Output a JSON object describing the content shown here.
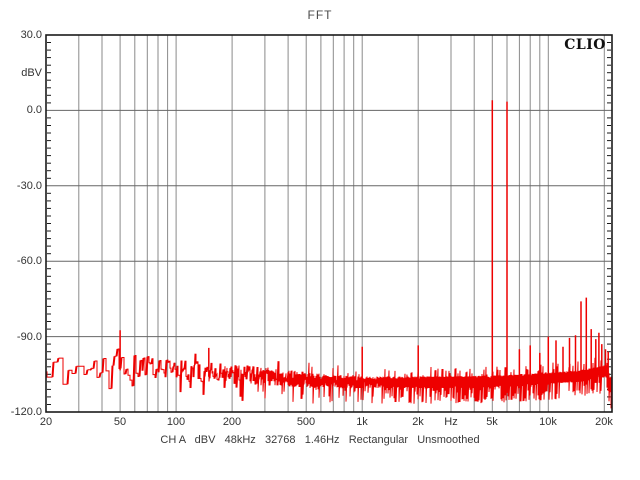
{
  "window": {
    "title": "FFT",
    "brand": "CLIO"
  },
  "status_line": "CH A   dBV   48kHz   32768   1.46Hz   Rectangular   Unsmoothed",
  "status_fields": {
    "channel": "CH A",
    "unit": "dBV",
    "sample_rate": "48kHz",
    "fft_size": "32768",
    "resolution": "1.46Hz",
    "window_fn": "Rectangular",
    "smoothing": "Unsmoothed"
  },
  "colors": {
    "trace": "#ee0000",
    "grid_v": "#8a8a8a",
    "grid_h": "#666666",
    "border": "#1a1a1a",
    "tick": "#1a1a1a"
  },
  "chart_data": {
    "type": "line",
    "title": "FFT",
    "ylabel": "dBV",
    "xscale": "log",
    "grid": true,
    "legend_position": "none",
    "xrange_hz": [
      20,
      22000
    ],
    "yrange_dbv": [
      -120,
      30
    ],
    "y_major_step_db": 30,
    "y_minor_step_db": 3,
    "bin_width_hz": 1.46,
    "y_tick_labels": [
      {
        "label": "30.0",
        "db": 30
      },
      {
        "label": "dBV",
        "db": 15
      },
      {
        "label": "0.0",
        "db": 0
      },
      {
        "label": "-30.0",
        "db": -30
      },
      {
        "label": "-60.0",
        "db": -60
      },
      {
        "label": "-90.0",
        "db": -90
      },
      {
        "label": "-120.0",
        "db": -120
      }
    ],
    "x_tick_labels": [
      {
        "label": "20",
        "hz": 20
      },
      {
        "label": "50",
        "hz": 50
      },
      {
        "label": "100",
        "hz": 100
      },
      {
        "label": "200",
        "hz": 200
      },
      {
        "label": "500",
        "hz": 500
      },
      {
        "label": "1k",
        "hz": 1000
      },
      {
        "label": "2k",
        "hz": 2000
      },
      {
        "label": "Hz",
        "hz": 3000
      },
      {
        "label": "5k",
        "hz": 5000
      },
      {
        "label": "10k",
        "hz": 10000
      },
      {
        "label": "20k",
        "hz": 20000
      }
    ],
    "x_gridlines_hz": [
      30,
      40,
      50,
      60,
      70,
      80,
      90,
      100,
      200,
      300,
      400,
      500,
      600,
      700,
      800,
      900,
      1000,
      2000,
      3000,
      4000,
      5000,
      6000,
      7000,
      8000,
      9000,
      10000,
      20000
    ],
    "y_gridlines_db": [
      0,
      -30,
      -60,
      -90
    ],
    "noise_floor_dbv": [
      [
        20,
        -102.5
      ],
      [
        28,
        -101.5
      ],
      [
        40,
        -102.5
      ],
      [
        55,
        -101.0
      ],
      [
        80,
        -102.5
      ],
      [
        120,
        -103.5
      ],
      [
        200,
        -104.5
      ],
      [
        350,
        -106.0
      ],
      [
        600,
        -107.5
      ],
      [
        1000,
        -108.0
      ],
      [
        3000,
        -108.0
      ],
      [
        6000,
        -107.5
      ],
      [
        10000,
        -106.5
      ],
      [
        15000,
        -105.5
      ],
      [
        19000,
        -104.0
      ],
      [
        20500,
        -103.5
      ],
      [
        21300,
        -107.0
      ],
      [
        22000,
        -111.0
      ]
    ],
    "noise_jitter_db": 2.5,
    "peaks_hz_dbv": [
      [
        50,
        -87.5
      ],
      [
        150,
        -94.5
      ],
      [
        1000,
        -94.0
      ],
      [
        2000,
        -93.5
      ],
      [
        5000,
        4.0
      ],
      [
        6000,
        3.5
      ],
      [
        7000,
        -95.0
      ],
      [
        8000,
        -93.5
      ],
      [
        9000,
        -96.5
      ],
      [
        10000,
        -90.0
      ],
      [
        11000,
        -91.5
      ],
      [
        12000,
        -94.0
      ],
      [
        13000,
        -90.5
      ],
      [
        14000,
        -89.5
      ],
      [
        15000,
        -76.0
      ],
      [
        16000,
        -74.5
      ],
      [
        17000,
        -87.0
      ],
      [
        18000,
        -91.0
      ],
      [
        18700,
        -88.5
      ],
      [
        19400,
        -93.0
      ],
      [
        20300,
        -95.0
      ],
      [
        21000,
        -96.0
      ]
    ],
    "main_tones_hz": [
      5000,
      6000
    ]
  }
}
